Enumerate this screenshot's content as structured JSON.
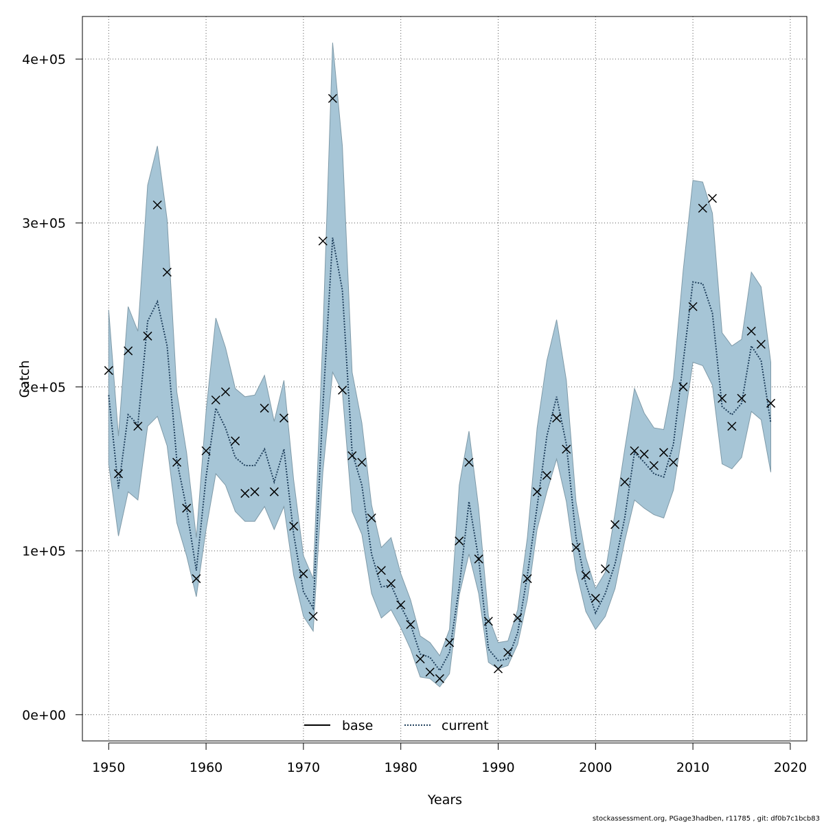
{
  "chart_data": {
    "type": "line",
    "title": "",
    "xlabel": "Years",
    "ylabel": "Catch",
    "xlim": [
      1947.3,
      2021.7
    ],
    "ylim": [
      -16000,
      426000
    ],
    "x_ticks": [
      1950,
      1960,
      1970,
      1980,
      1990,
      2000,
      2010,
      2020
    ],
    "x_tick_labels": [
      "1950",
      "1960",
      "1970",
      "1980",
      "1990",
      "2000",
      "2010",
      "2020"
    ],
    "y_ticks": [
      0,
      100000,
      200000,
      300000,
      400000
    ],
    "y_tick_labels": [
      "0e+00",
      "1e+05",
      "2e+05",
      "3e+05",
      "4e+05"
    ],
    "grid": true,
    "legend_position": "bottom",
    "legend": [
      {
        "label": "base",
        "style": "solid",
        "color": "#000000"
      },
      {
        "label": "current",
        "style": "dotted",
        "color": "#1f4e79"
      }
    ],
    "colors": {
      "band": "#a6c5d6",
      "band_edge": "#7f9aa8",
      "current_line": "#1f3f5c",
      "observed": "#000000"
    },
    "years": [
      1950,
      1951,
      1952,
      1953,
      1954,
      1955,
      1956,
      1957,
      1958,
      1959,
      1960,
      1961,
      1962,
      1963,
      1964,
      1965,
      1966,
      1967,
      1968,
      1969,
      1970,
      1971,
      1972,
      1973,
      1974,
      1975,
      1976,
      1977,
      1978,
      1979,
      1980,
      1981,
      1982,
      1983,
      1984,
      1985,
      1986,
      1987,
      1988,
      1989,
      1990,
      1991,
      1992,
      1993,
      1994,
      1995,
      1996,
      1997,
      1998,
      1999,
      2000,
      2001,
      2002,
      2003,
      2004,
      2005,
      2006,
      2007,
      2008,
      2009,
      2010,
      2011,
      2012,
      2013,
      2014,
      2015,
      2016,
      2017,
      2018
    ],
    "series": [
      {
        "name": "current",
        "values": [
          195000,
          138000,
          183000,
          177000,
          240000,
          252000,
          225000,
          155000,
          126000,
          88000,
          145000,
          187000,
          175000,
          157000,
          152000,
          152000,
          162000,
          142000,
          162000,
          110000,
          75000,
          65000,
          188000,
          291000,
          259000,
          160000,
          140000,
          98000,
          78000,
          79000,
          66000,
          55000,
          37000,
          35000,
          27000,
          38000,
          78000,
          130000,
          95000,
          40000,
          33000,
          34000,
          50000,
          85000,
          127000,
          170000,
          194000,
          165000,
          108000,
          80000,
          62000,
          74000,
          92000,
          120000,
          160000,
          154000,
          147000,
          145000,
          165000,
          215000,
          264000,
          263000,
          245000,
          188000,
          183000,
          190000,
          225000,
          216000,
          178000
        ]
      },
      {
        "name": "band_upper",
        "values": [
          247000,
          170000,
          249000,
          234000,
          323000,
          347000,
          302000,
          197000,
          160000,
          108000,
          185000,
          242000,
          224000,
          199000,
          194000,
          195000,
          207000,
          179000,
          204000,
          143000,
          97000,
          83000,
          232000,
          410000,
          347000,
          209000,
          178000,
          128000,
          102000,
          108000,
          86000,
          70000,
          48000,
          44000,
          36000,
          52000,
          140000,
          173000,
          126000,
          60000,
          44000,
          45000,
          64000,
          108000,
          175000,
          216000,
          241000,
          204000,
          130000,
          96000,
          77000,
          87000,
          123000,
          162000,
          199000,
          184000,
          175000,
          174000,
          205000,
          271000,
          326000,
          325000,
          306000,
          233000,
          225000,
          229000,
          270000,
          261000,
          215000
        ]
      },
      {
        "name": "band_lower",
        "values": [
          153000,
          109000,
          136000,
          131000,
          176000,
          182000,
          164000,
          117000,
          97000,
          72000,
          113000,
          147000,
          140000,
          124000,
          118000,
          118000,
          127000,
          113000,
          127000,
          85000,
          60000,
          51000,
          148000,
          209000,
          197000,
          124000,
          110000,
          74000,
          59000,
          64000,
          53000,
          40000,
          23000,
          22000,
          17000,
          25000,
          73000,
          98000,
          74000,
          32000,
          28000,
          30000,
          43000,
          70000,
          113000,
          136000,
          156000,
          130000,
          88000,
          63000,
          52000,
          60000,
          77000,
          106000,
          131000,
          126000,
          122000,
          120000,
          137000,
          175000,
          215000,
          213000,
          201000,
          153000,
          150000,
          157000,
          185000,
          180000,
          148000
        ]
      },
      {
        "name": "observed",
        "values": [
          210000,
          147000,
          222000,
          176000,
          231000,
          311000,
          270000,
          154000,
          126000,
          83000,
          161000,
          192000,
          197000,
          167000,
          135000,
          136000,
          187000,
          136000,
          181000,
          115000,
          86000,
          60000,
          289000,
          376000,
          198000,
          158000,
          154000,
          120000,
          88000,
          80000,
          67000,
          55000,
          34000,
          26000,
          22000,
          44000,
          106000,
          154000,
          95000,
          57000,
          28000,
          38000,
          59000,
          83000,
          136000,
          146000,
          181000,
          162000,
          102000,
          85000,
          71000,
          89000,
          116000,
          142000,
          161000,
          159000,
          152000,
          160000,
          154000,
          200000,
          249000,
          309000,
          315000,
          193000,
          176000,
          193000,
          234000,
          226000,
          190000
        ]
      }
    ]
  },
  "footer": "stockassessment.org, PGage3hadben, r11785 , git: df0b7c1bcb83"
}
